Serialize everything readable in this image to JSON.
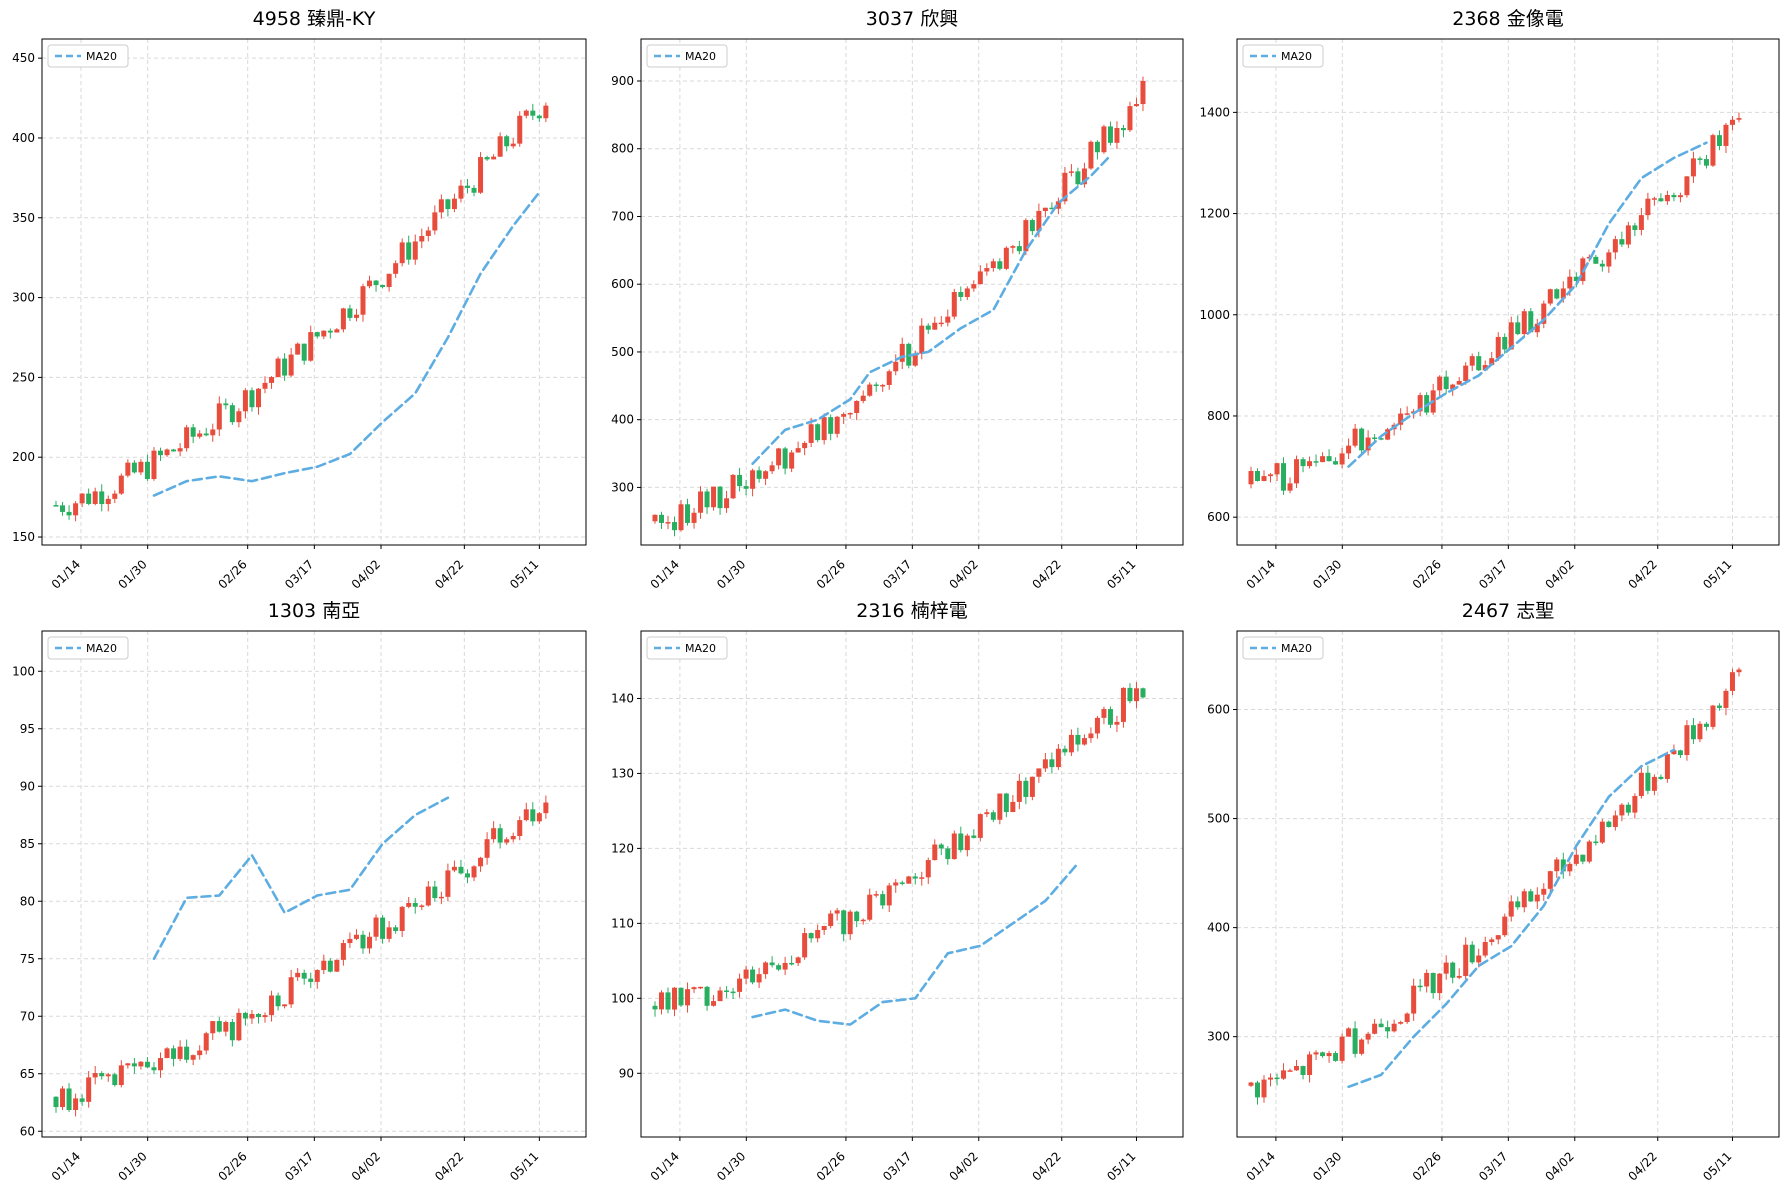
{
  "colors": {
    "up": "#e74c3c",
    "down": "#27ae60",
    "ma": "#5dade2",
    "grid": "#d9d9d9"
  },
  "chart_data": [
    {
      "type": "candlestick",
      "title": "4958 臻鼎-KY",
      "legend": [
        "MA20"
      ],
      "legend_position": "top-left",
      "grid": true,
      "ylim": [
        145,
        462
      ],
      "yticks": [
        150,
        200,
        250,
        300,
        350,
        400,
        450
      ],
      "start": 170,
      "end": 425,
      "ma": [
        [
          15,
          176
        ],
        [
          20,
          185
        ],
        [
          25,
          188
        ],
        [
          30,
          185
        ],
        [
          35,
          190
        ],
        [
          40,
          194
        ],
        [
          45,
          202
        ],
        [
          50,
          222
        ],
        [
          55,
          240
        ],
        [
          60,
          275
        ],
        [
          65,
          315
        ],
        [
          70,
          345
        ],
        [
          74,
          366
        ]
      ],
      "xticks": [
        "01/14",
        "01/30",
        "02/26",
        "03/17",
        "04/02",
        "04/22",
        "05/11"
      ]
    },
    {
      "type": "candlestick",
      "title": "3037 欣興",
      "legend": [
        "MA20"
      ],
      "legend_position": "top-left",
      "grid": true,
      "ylim": [
        215,
        962
      ],
      "yticks": [
        300,
        400,
        500,
        600,
        700,
        800,
        900
      ],
      "start": 250,
      "end": 880,
      "ma": [
        [
          15,
          335
        ],
        [
          20,
          385
        ],
        [
          25,
          400
        ],
        [
          30,
          430
        ],
        [
          33,
          470
        ],
        [
          38,
          493
        ],
        [
          42,
          500
        ],
        [
          47,
          535
        ],
        [
          52,
          562
        ],
        [
          57,
          650
        ],
        [
          62,
          720
        ],
        [
          67,
          760
        ],
        [
          70,
          790
        ]
      ],
      "xticks": [
        "01/14",
        "01/30",
        "02/26",
        "03/17",
        "04/02",
        "04/22",
        "05/11"
      ]
    },
    {
      "type": "candlestick",
      "title": "2368 金像電",
      "legend": [
        "MA20"
      ],
      "legend_position": "top-left",
      "grid": true,
      "ylim": [
        545,
        1545
      ],
      "yticks": [
        600,
        800,
        1000,
        1200,
        1400
      ],
      "start": 665,
      "end": 1380,
      "ma": [
        [
          15,
          700
        ],
        [
          20,
          760
        ],
        [
          25,
          805
        ],
        [
          30,
          845
        ],
        [
          35,
          880
        ],
        [
          40,
          935
        ],
        [
          45,
          990
        ],
        [
          50,
          1060
        ],
        [
          55,
          1180
        ],
        [
          60,
          1270
        ],
        [
          65,
          1310
        ],
        [
          70,
          1340
        ]
      ],
      "xticks": [
        "01/14",
        "01/30",
        "02/26",
        "03/17",
        "04/02",
        "04/22",
        "05/11"
      ]
    },
    {
      "type": "candlestick",
      "title": "1303 南亞",
      "legend": [
        "MA20"
      ],
      "legend_position": "top-left",
      "grid": true,
      "ylim": [
        59.5,
        103.5
      ],
      "yticks": [
        60,
        65,
        70,
        75,
        80,
        85,
        90,
        95,
        100
      ],
      "start": 63,
      "end": 89,
      "ma": [
        [
          15,
          75
        ],
        [
          20,
          80.3
        ],
        [
          25,
          80.5
        ],
        [
          30,
          84
        ],
        [
          35,
          79
        ],
        [
          40,
          80.5
        ],
        [
          45,
          81
        ],
        [
          50,
          85
        ],
        [
          55,
          87.5
        ],
        [
          60,
          89
        ]
      ],
      "xticks": [
        "01/14",
        "01/30",
        "02/26",
        "03/17",
        "04/02",
        "04/22",
        "05/11"
      ]
    },
    {
      "type": "candlestick",
      "title": "2316 楠梓電",
      "legend": [
        "MA20"
      ],
      "legend_position": "top-left",
      "grid": true,
      "ylim": [
        81.5,
        149
      ],
      "yticks": [
        90,
        100,
        110,
        120,
        130,
        140
      ],
      "start": 99,
      "end": 142,
      "ma": [
        [
          15,
          97.5
        ],
        [
          20,
          98.5
        ],
        [
          25,
          97
        ],
        [
          30,
          96.5
        ],
        [
          35,
          99.5
        ],
        [
          40,
          100
        ],
        [
          45,
          106
        ],
        [
          50,
          107
        ],
        [
          55,
          110
        ],
        [
          60,
          113
        ],
        [
          65,
          118
        ]
      ],
      "xticks": [
        "01/14",
        "01/30",
        "02/26",
        "03/17",
        "04/02",
        "04/22",
        "05/11"
      ]
    },
    {
      "type": "candlestick",
      "title": "2467 志聖",
      "legend": [
        "MA20"
      ],
      "legend_position": "top-left",
      "grid": true,
      "ylim": [
        208,
        672
      ],
      "yticks": [
        300,
        400,
        500,
        600
      ],
      "start": 255,
      "end": 630,
      "ma": [
        [
          15,
          254
        ],
        [
          20,
          265
        ],
        [
          25,
          300
        ],
        [
          30,
          330
        ],
        [
          35,
          365
        ],
        [
          40,
          383
        ],
        [
          45,
          420
        ],
        [
          50,
          475
        ],
        [
          55,
          520
        ],
        [
          60,
          548
        ],
        [
          65,
          563
        ]
      ],
      "xticks": [
        "01/14",
        "01/30",
        "02/26",
        "03/17",
        "04/02",
        "04/22",
        "05/11"
      ]
    }
  ]
}
